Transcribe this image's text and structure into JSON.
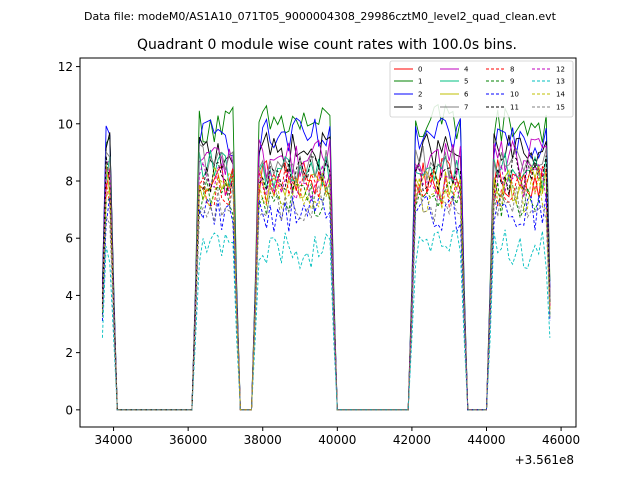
{
  "suptitle": "Data file: modeM0/AS1A10_071T05_9000004308_29986cztM0_level2_quad_clean.evt",
  "chart_data": {
    "type": "line",
    "title": "Quadrant 0 module wise count rates with 100.0s bins.",
    "xlabel": "",
    "ylabel": "",
    "x_offset_label": "+3.561e8",
    "xlim": [
      33100,
      46400
    ],
    "ylim": [
      -0.6,
      12.3
    ],
    "xticks": [
      34000,
      36000,
      38000,
      40000,
      42000,
      44000,
      46000
    ],
    "xtick_labels": [
      "34000",
      "36000",
      "38000",
      "40000",
      "42000",
      "44000",
      "46000"
    ],
    "yticks": [
      0,
      2,
      4,
      6,
      8,
      10,
      12
    ],
    "ytick_labels": [
      "0",
      "2",
      "4",
      "6",
      "8",
      "10",
      "12"
    ],
    "legend_position": "top-right",
    "active_intervals": [
      [
        33700,
        34000
      ],
      [
        36200,
        37300
      ],
      [
        37800,
        39900
      ],
      [
        42000,
        43400
      ],
      [
        44100,
        45700
      ]
    ],
    "series": [
      {
        "name": "0",
        "color": "#ff0000",
        "dash": "solid",
        "level": 8.1
      },
      {
        "name": "1",
        "color": "#008000",
        "dash": "solid",
        "level": 10.0
      },
      {
        "name": "2",
        "color": "#0000ff",
        "dash": "solid",
        "level": 9.5
      },
      {
        "name": "3",
        "color": "#000000",
        "dash": "solid",
        "level": 9.0
      },
      {
        "name": "4",
        "color": "#bf00bf",
        "dash": "solid",
        "level": 8.8
      },
      {
        "name": "5",
        "color": "#00bf80",
        "dash": "solid",
        "level": 8.4
      },
      {
        "name": "6",
        "color": "#bfbf00",
        "dash": "solid",
        "level": 7.9
      },
      {
        "name": "7",
        "color": "#808080",
        "dash": "solid",
        "level": 8.6
      },
      {
        "name": "8",
        "color": "#ff0000",
        "dash": "dashed",
        "level": 7.8
      },
      {
        "name": "9",
        "color": "#008000",
        "dash": "dashed",
        "level": 7.4
      },
      {
        "name": "10",
        "color": "#0000ff",
        "dash": "dashed",
        "level": 6.9
      },
      {
        "name": "11",
        "color": "#000000",
        "dash": "dashed",
        "level": 8.2
      },
      {
        "name": "12",
        "color": "#bf00bf",
        "dash": "dashed",
        "level": 8.0
      },
      {
        "name": "13",
        "color": "#00bfbf",
        "dash": "dashed",
        "level": 5.6
      },
      {
        "name": "14",
        "color": "#bfbf00",
        "dash": "dashed",
        "level": 7.6
      },
      {
        "name": "15",
        "color": "#808080",
        "dash": "dashed",
        "level": 7.2
      }
    ]
  }
}
